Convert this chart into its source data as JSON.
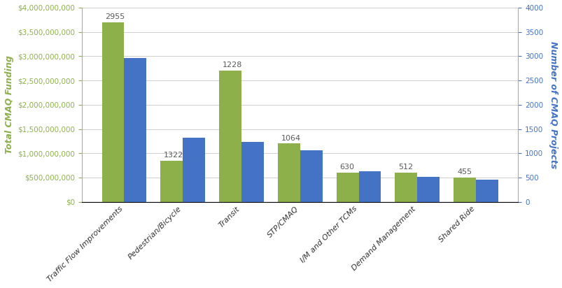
{
  "categories": [
    "Traffic Flow Improvements",
    "Pedestrian/Bicycle",
    "Transit",
    "STP/CMAQ",
    "I/M and Other TCMs",
    "Demand Management",
    "Shared Ride"
  ],
  "funding": [
    3700000000,
    850000000,
    2700000000,
    1200000000,
    600000000,
    600000000,
    500000000
  ],
  "projects": [
    2955,
    1322,
    1228,
    1064,
    630,
    512,
    455
  ],
  "bar_color_funding": "#8db04a",
  "bar_color_projects": "#4472c4",
  "left_ylabel": "Total CMAQ Funding",
  "right_ylabel": "Number of CMAQ Projects",
  "left_ylim": [
    0,
    4000000000
  ],
  "right_ylim": [
    0,
    4000
  ],
  "left_yticks": [
    0,
    500000000,
    1000000000,
    1500000000,
    2000000000,
    2500000000,
    3000000000,
    3500000000,
    4000000000
  ],
  "right_yticks": [
    0,
    500,
    1000,
    1500,
    2000,
    2500,
    3000,
    3500,
    4000
  ],
  "background_color": "#ffffff",
  "label_color": "#595959",
  "grid_color": "#c8c8c8",
  "label_fontsize": 8,
  "axis_label_fontsize": 9,
  "tick_label_fontsize": 7.5
}
